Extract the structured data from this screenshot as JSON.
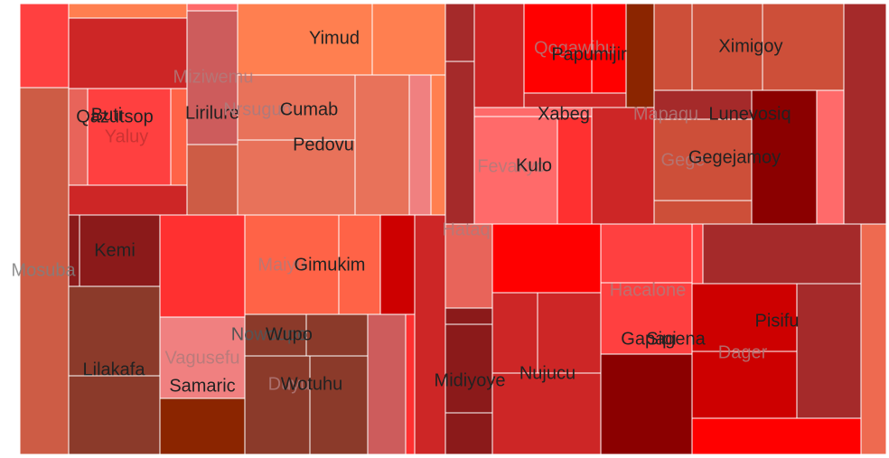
{
  "chart_data": {
    "type": "treemap",
    "title": "",
    "nodes": [
      {
        "label": "Mosuba",
        "color": "#cd5c45",
        "level": "parent",
        "label_color": "#7f7f7f"
      },
      {
        "label": "Miziwemu",
        "color": "#cd5c5c",
        "level": "parent",
        "label_color": "#b07a7a"
      },
      {
        "label": "Qazutsop",
        "color": "#e8645a",
        "level": "leaf",
        "label_color": "#222222"
      },
      {
        "label": "Yaluy",
        "color": "#ff4040",
        "level": "leaf",
        "label_color": "#cc3333"
      },
      {
        "label": "Buti",
        "color": "#ff4040",
        "level": "leaf",
        "label_color": "#222222"
      },
      {
        "label": "Lirilure",
        "color": "#cd5c5c",
        "level": "leaf",
        "label_color": "#222222"
      },
      {
        "label": "Nrsugun",
        "color": "#ff7f50",
        "level": "leaf",
        "label_color": "#b07a7a"
      },
      {
        "label": "Cumab",
        "color": "#e8725a",
        "level": "leaf",
        "label_color": "#222222"
      },
      {
        "label": "Yimud",
        "color": "#ff7f50",
        "level": "leaf",
        "label_color": "#222222"
      },
      {
        "label": "Pedovu",
        "color": "#e8725a",
        "level": "leaf",
        "label_color": "#222222"
      },
      {
        "label": "Kemi",
        "color": "#8b1a1a",
        "level": "leaf",
        "label_color": "#222222"
      },
      {
        "label": "Lilakafa",
        "color": "#8b3a2a",
        "level": "leaf",
        "label_color": "#222222"
      },
      {
        "label": "Maiyu",
        "color": "#ff5a3c",
        "level": "parent",
        "label_color": "#b07a7a"
      },
      {
        "label": "Gimukim",
        "color": "#ff6347",
        "level": "leaf",
        "label_color": "#222222"
      },
      {
        "label": "Nowoupo",
        "color": "#8b3a2a",
        "level": "leaf",
        "label_color": "#555555"
      },
      {
        "label": "Wupo",
        "color": "#8b3a2a",
        "level": "leaf",
        "label_color": "#222222"
      },
      {
        "label": "Vagusefu",
        "color": "#f08080",
        "level": "parent",
        "label_color": "#b07a7a"
      },
      {
        "label": "Samaric",
        "color": "#f08080",
        "level": "leaf",
        "label_color": "#222222"
      },
      {
        "label": "Duyu",
        "color": "#8b3a2a",
        "level": "parent",
        "label_color": "#b07a7a"
      },
      {
        "label": "Wotuhu",
        "color": "#8b3a2a",
        "level": "leaf",
        "label_color": "#222222"
      },
      {
        "label": "Hataq",
        "color": "#e8645a",
        "level": "parent",
        "label_color": "#b07a7a"
      },
      {
        "label": "Midiyoye",
        "color": "#8b1a1a",
        "level": "leaf",
        "label_color": "#222222"
      },
      {
        "label": "Nujucu",
        "color": "#c83232",
        "level": "leaf",
        "label_color": "#222222"
      },
      {
        "label": "Qogawibu",
        "color": "#cd2626",
        "level": "parent",
        "label_color": "#b07a7a"
      },
      {
        "label": "Papumijir",
        "color": "#ff0000",
        "level": "leaf",
        "label_color": "#222222"
      },
      {
        "label": "Xabeg",
        "color": "#cd2626",
        "level": "leaf",
        "label_color": "#222222"
      },
      {
        "label": "Fevakyo",
        "color": "#ff6a6a",
        "level": "parent",
        "label_color": "#b07a7a"
      },
      {
        "label": "Kulo",
        "color": "#ff6a6a",
        "level": "leaf",
        "label_color": "#222222"
      },
      {
        "label": "Ximigoy",
        "color": "#cd4f39",
        "level": "leaf",
        "label_color": "#222222"
      },
      {
        "label": "Mapaqu",
        "color": "#a52a2a",
        "level": "parent",
        "label_color": "#b07a7a"
      },
      {
        "label": "Lunevosiq",
        "color": "#8b0000",
        "level": "leaf",
        "label_color": "#222222"
      },
      {
        "label": "Gege",
        "color": "#cd4f39",
        "level": "parent",
        "label_color": "#b07a7a"
      },
      {
        "label": "Gegejamoy",
        "color": "#cd4f39",
        "level": "leaf",
        "label_color": "#222222"
      },
      {
        "label": "Hacalone",
        "color": "#ff4040",
        "level": "parent",
        "label_color": "#b07a7a"
      },
      {
        "label": "Gapagena",
        "color": "#ff4040",
        "level": "leaf",
        "label_color": "#222222"
      },
      {
        "label": "Sipi",
        "color": "#cd2626",
        "level": "leaf",
        "label_color": "#222222"
      },
      {
        "label": "Pisifu",
        "color": "#cd0000",
        "level": "leaf",
        "label_color": "#222222"
      },
      {
        "label": "Dager",
        "color": "#c83232",
        "level": "parent",
        "label_color": "#b07a7a"
      }
    ]
  }
}
